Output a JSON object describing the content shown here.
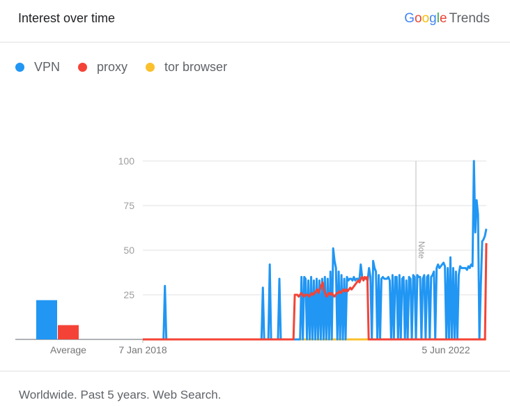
{
  "header": {
    "title": "Interest over time",
    "brand_google": "Google",
    "brand_trends": "Trends"
  },
  "footer": {
    "text": "Worldwide. Past 5 years. Web Search."
  },
  "colors": {
    "vpn": "#2196f3",
    "proxy": "#f44336",
    "tor": "#fbc02d",
    "grid": "#e0e0e0",
    "axis": "#9e9e9e"
  },
  "chart_data": {
    "type": "line",
    "ylim": [
      0,
      100
    ],
    "yticks": [
      25,
      50,
      75,
      100
    ],
    "x_tick_labels": [
      "7 Jan 2018",
      "5 Jun 2022"
    ],
    "average_label": "Average",
    "note_label": "Note",
    "grid": true,
    "legend_position": "top-left",
    "series": [
      {
        "name": "VPN",
        "values": [
          0,
          0,
          0,
          0,
          0,
          0,
          0,
          0,
          0,
          0,
          0,
          0,
          0,
          0,
          0,
          0,
          30,
          0,
          0,
          0,
          0,
          0,
          0,
          0,
          0,
          0,
          0,
          0,
          0,
          0,
          0,
          0,
          0,
          0,
          0,
          0,
          0,
          0,
          0,
          0,
          0,
          0,
          0,
          0,
          0,
          0,
          0,
          0,
          0,
          0,
          0,
          0,
          0,
          0,
          0,
          0,
          0,
          0,
          0,
          0,
          0,
          0,
          0,
          0,
          0,
          0,
          0,
          0,
          0,
          0,
          0,
          0,
          0,
          0,
          0,
          0,
          0,
          0,
          0,
          0,
          0,
          0,
          0,
          0,
          0,
          0,
          0,
          29,
          0,
          0,
          0,
          0,
          42,
          0,
          0,
          0,
          0,
          0,
          0,
          34,
          0,
          0,
          0,
          0,
          0,
          0,
          0,
          0,
          0,
          0,
          0,
          0,
          0,
          0,
          0,
          35,
          0,
          35,
          34,
          0,
          33,
          0,
          35,
          0,
          33,
          0,
          34,
          0,
          33,
          0,
          34,
          0,
          35,
          0,
          34,
          0,
          38,
          0,
          51,
          44,
          40,
          0,
          38,
          0,
          36,
          0,
          34,
          0,
          35,
          33,
          34,
          34,
          33,
          35,
          33,
          34,
          34,
          33,
          42,
          35,
          34,
          34,
          34,
          33,
          40,
          35,
          0,
          44,
          40,
          38,
          0,
          36,
          0,
          34,
          35,
          34,
          34,
          34,
          35,
          33,
          0,
          36,
          0,
          35,
          35,
          0,
          36,
          0,
          34,
          35,
          0,
          33,
          0,
          35,
          34,
          0,
          36,
          35,
          0,
          36,
          35,
          35,
          0,
          34,
          36,
          0,
          35,
          36,
          0,
          35,
          36,
          38,
          0,
          40,
          42,
          40,
          41,
          42,
          43,
          41,
          0,
          40,
          0,
          46,
          0,
          40,
          0,
          38,
          0,
          36,
          41,
          40,
          40,
          40,
          40,
          39,
          41,
          40,
          42,
          41,
          100,
          60,
          78,
          70,
          0,
          30,
          55,
          56,
          58,
          62
        ]
      },
      {
        "name": "proxy",
        "values": [
          0,
          0,
          0,
          0,
          0,
          0,
          0,
          0,
          0,
          0,
          0,
          0,
          0,
          0,
          0,
          0,
          0,
          0,
          0,
          0,
          0,
          0,
          0,
          0,
          0,
          0,
          0,
          0,
          0,
          0,
          0,
          0,
          0,
          0,
          0,
          0,
          0,
          0,
          0,
          0,
          0,
          0,
          0,
          0,
          0,
          0,
          0,
          0,
          0,
          0,
          0,
          0,
          0,
          0,
          0,
          0,
          0,
          0,
          0,
          0,
          0,
          0,
          0,
          0,
          0,
          0,
          0,
          0,
          0,
          0,
          0,
          0,
          0,
          0,
          0,
          0,
          0,
          0,
          0,
          0,
          0,
          0,
          0,
          0,
          0,
          0,
          0,
          0,
          0,
          0,
          0,
          0,
          0,
          0,
          0,
          0,
          0,
          0,
          0,
          0,
          0,
          0,
          0,
          0,
          0,
          0,
          0,
          0,
          0,
          0,
          0,
          0,
          0,
          0,
          0,
          25,
          25,
          25,
          24,
          25,
          26,
          25,
          24,
          25,
          25,
          25,
          24,
          25,
          26,
          25,
          26,
          27,
          28,
          26,
          28,
          30,
          32,
          28,
          26,
          24,
          25,
          26,
          25,
          26,
          25,
          24,
          25,
          26,
          26,
          27,
          26,
          27,
          28,
          27,
          28,
          27,
          28,
          29,
          28,
          29,
          30,
          31,
          32,
          33,
          32,
          34,
          35,
          33,
          35,
          34,
          35,
          0,
          0,
          0,
          0,
          0,
          0,
          0,
          0,
          0,
          0,
          0,
          0,
          0,
          0,
          0,
          0,
          0,
          0,
          0,
          0,
          0,
          0,
          0,
          0,
          0,
          0,
          0,
          0,
          0,
          0,
          0,
          0,
          0,
          0,
          0,
          0,
          0,
          0,
          0,
          0,
          0,
          0,
          0,
          0,
          0,
          0,
          0,
          0,
          0,
          0,
          0,
          0,
          0,
          0,
          0,
          0,
          0,
          0,
          0,
          0,
          0,
          0,
          0,
          0,
          0,
          0,
          0,
          0,
          0,
          0,
          0,
          0,
          0,
          0,
          0,
          0,
          0,
          0,
          0,
          0,
          0,
          0,
          0,
          0,
          0,
          0,
          0,
          0,
          0,
          54
        ]
      },
      {
        "name": "tor browser",
        "values": [
          0,
          0,
          0,
          0,
          0,
          0,
          0,
          0,
          0,
          0,
          0,
          0,
          0,
          0,
          0,
          0,
          0,
          0,
          0,
          0,
          0,
          0,
          0,
          0,
          0,
          0,
          0,
          0,
          0,
          0,
          0,
          0,
          0,
          0,
          0,
          0,
          0,
          0,
          0,
          0,
          0,
          0,
          0,
          0,
          0,
          0,
          0,
          0,
          0,
          0,
          0,
          0,
          0,
          0,
          0,
          0,
          0,
          0,
          0,
          0,
          0,
          0,
          0,
          0,
          0,
          0,
          0,
          0,
          0,
          0,
          0,
          0,
          0,
          0,
          0,
          0,
          0,
          0,
          0,
          0,
          0,
          0,
          0,
          0,
          0,
          0,
          0,
          0,
          0,
          0,
          0,
          0,
          0,
          0,
          0,
          0,
          0,
          0,
          0,
          0,
          0,
          0,
          0,
          0,
          0,
          0,
          0,
          0,
          0,
          0,
          0,
          0,
          0,
          0,
          0,
          0,
          0,
          0,
          0,
          0,
          0,
          0,
          0,
          0,
          0,
          0,
          0,
          0,
          0,
          0,
          0,
          0,
          0,
          0,
          0,
          0,
          0,
          0,
          0,
          0,
          0,
          0,
          0,
          0,
          0,
          0,
          0,
          0,
          0,
          0,
          0,
          0,
          0,
          0,
          0,
          0,
          0,
          0,
          0,
          0,
          0,
          0,
          0,
          0,
          0,
          0,
          0,
          0,
          0,
          0,
          0,
          0,
          0,
          0,
          0,
          0,
          0,
          0,
          0,
          0,
          0,
          0,
          0,
          0,
          0,
          0,
          0,
          0,
          0,
          0,
          0,
          0,
          0,
          0,
          0,
          0,
          0,
          0,
          0,
          0,
          0,
          0,
          0,
          0,
          0,
          0,
          0,
          0,
          0,
          0,
          0,
          0,
          0,
          0,
          0,
          0,
          0,
          0,
          0,
          0,
          0,
          0,
          0,
          0,
          0,
          0,
          0,
          0,
          0,
          0,
          0,
          0,
          0,
          0,
          0,
          0,
          0,
          0,
          0,
          0,
          0,
          0,
          0,
          0,
          0,
          0,
          0,
          0,
          0,
          0,
          0,
          0,
          0,
          0,
          0,
          0
        ]
      }
    ],
    "averages": [
      22,
      8,
      0
    ]
  }
}
